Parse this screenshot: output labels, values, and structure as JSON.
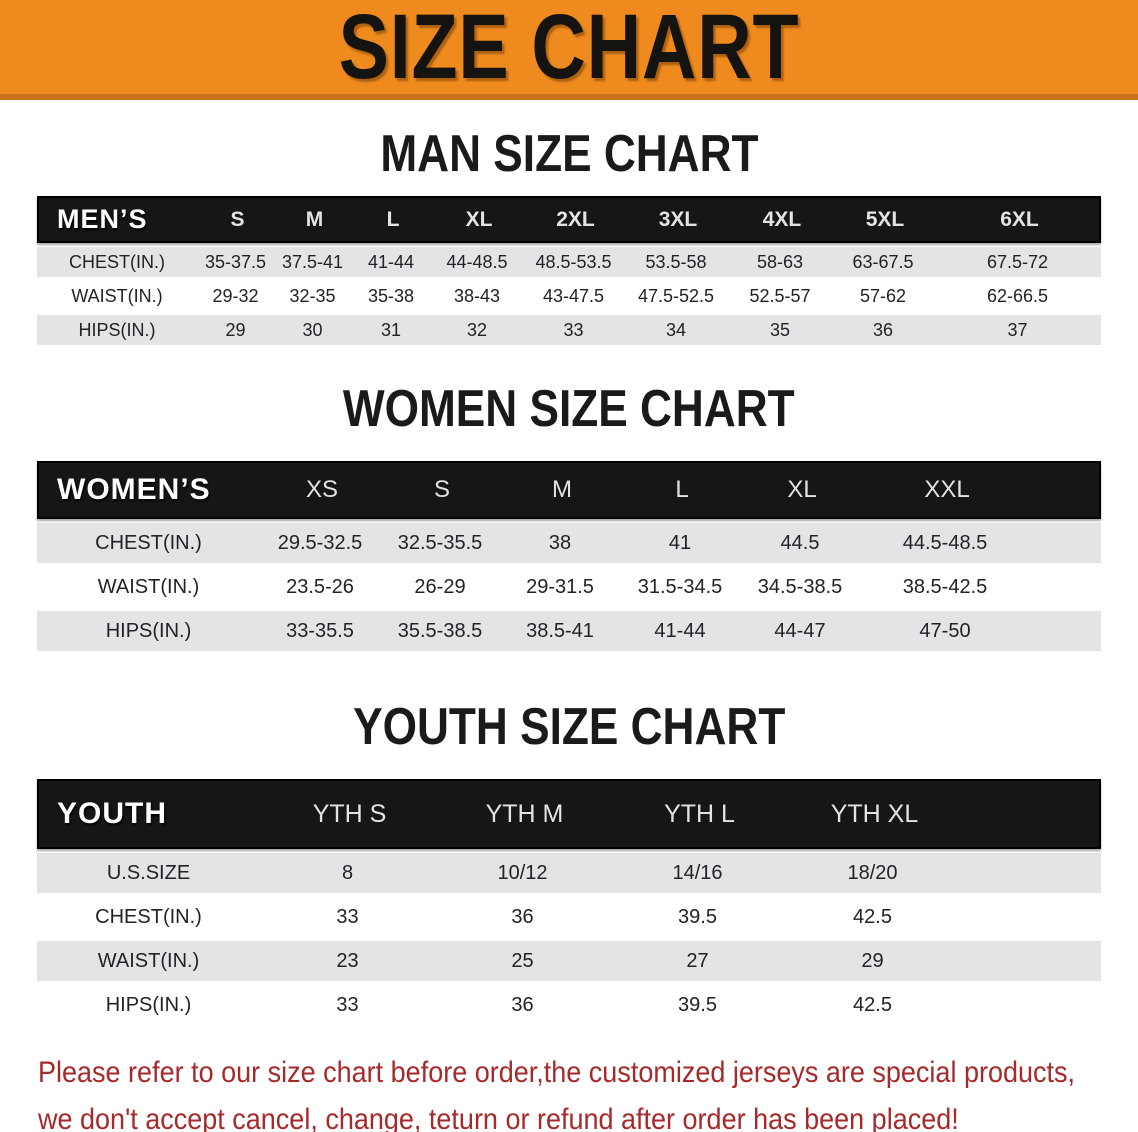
{
  "banner": {
    "title": "SIZE CHART"
  },
  "colors": {
    "banner_bg": "#EE8A1E",
    "banner_border": "#C8701B",
    "header_bar_bg": "#161616",
    "stripe_row_bg": "#E4E4E6",
    "white_row_bg": "#FFFFFF",
    "table_text": "#222228",
    "disclaimer_red": "#A62A2B",
    "title_text": "#141310"
  },
  "men": {
    "heading": "MAN SIZE CHART",
    "group_label": "MEN’S",
    "sizes": [
      "S",
      "M",
      "L",
      "XL",
      "2XL",
      "3XL",
      "4XL",
      "5XL",
      "6XL"
    ],
    "rows": [
      {
        "label": "CHEST(IN.)",
        "values": [
          "35-37.5",
          "37.5-41",
          "41-44",
          "44-48.5",
          "48.5-53.5",
          "53.5-58",
          "58-63",
          "63-67.5",
          "67.5-72"
        ]
      },
      {
        "label": "WAIST(IN.)",
        "values": [
          "29-32",
          "32-35",
          "35-38",
          "38-43",
          "43-47.5",
          "47.5-52.5",
          "52.5-57",
          "57-62",
          "62-66.5"
        ]
      },
      {
        "label": "HIPS(IN.)",
        "values": [
          "29",
          "30",
          "31",
          "32",
          "33",
          "34",
          "35",
          "36",
          "37"
        ]
      }
    ]
  },
  "women": {
    "heading": "WOMEN SIZE CHART",
    "group_label": "WOMEN’S",
    "sizes": [
      "XS",
      "S",
      "M",
      "L",
      "XL",
      "XXL"
    ],
    "rows": [
      {
        "label": "CHEST(IN.)",
        "values": [
          "29.5-32.5",
          "32.5-35.5",
          "38",
          "41",
          "44.5",
          "44.5-48.5"
        ]
      },
      {
        "label": "WAIST(IN.)",
        "values": [
          "23.5-26",
          "26-29",
          "29-31.5",
          "31.5-34.5",
          "34.5-38.5",
          "38.5-42.5"
        ]
      },
      {
        "label": "HIPS(IN.)",
        "values": [
          "33-35.5",
          "35.5-38.5",
          "38.5-41",
          "41-44",
          "44-47",
          "47-50"
        ]
      }
    ]
  },
  "youth": {
    "heading": "YOUTH SIZE CHART",
    "group_label": "YOUTH",
    "sizes": [
      "YTH S",
      "YTH M",
      "YTH L",
      "YTH XL"
    ],
    "rows": [
      {
        "label": "U.S.SIZE",
        "values": [
          "8",
          "10/12",
          "14/16",
          "18/20"
        ]
      },
      {
        "label": "CHEST(IN.)",
        "values": [
          "33",
          "36",
          "39.5",
          "42.5"
        ]
      },
      {
        "label": "WAIST(IN.)",
        "values": [
          "23",
          "25",
          "27",
          "29"
        ]
      },
      {
        "label": "HIPS(IN.)",
        "values": [
          "33",
          "36",
          "39.5",
          "42.5"
        ]
      }
    ]
  },
  "disclaimer": {
    "line1": "Please refer to our size chart before order,the customized jerseys are special products,",
    "line2": "we don't accept cancel, change, teturn or refund after order has been placed!"
  }
}
